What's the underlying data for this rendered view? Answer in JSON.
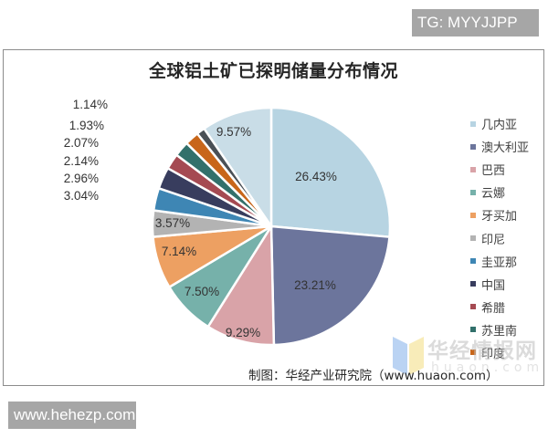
{
  "badges": {
    "top_right": "TG: MYYJJPP",
    "bottom_left": "www.hehezp.com"
  },
  "source_note": "制图：华经产业研究院（www.huaon.com）",
  "watermark": {
    "text": "华经情报网",
    "subtext": "huaon.com"
  },
  "chart_data": {
    "type": "pie",
    "title": "全球铝土矿已探明储量分布情况",
    "start_angle": "12 o'clock, clockwise",
    "legend_position": "right",
    "categories": [
      "几内亚",
      "澳大利亚",
      "巴西",
      "云娜",
      "牙买加",
      "印尼",
      "圭亚那",
      "中国",
      "希腊",
      "苏里南",
      "印度",
      "",
      ""
    ],
    "values": [
      26.43,
      23.21,
      9.29,
      7.5,
      7.14,
      3.57,
      3.04,
      2.96,
      2.14,
      2.07,
      1.93,
      1.14,
      9.57
    ],
    "labels": [
      "26.43%",
      "23.21%",
      "9.29%",
      "7.50%",
      "7.14%",
      "3.57%",
      "3.04%",
      "2.96%",
      "2.14%",
      "2.07%",
      "1.93%",
      "1.14%",
      "9.57%"
    ],
    "colors": [
      "#b7d4e2",
      "#6c759c",
      "#d9a3a8",
      "#76b1aa",
      "#eda062",
      "#b3b3b3",
      "#3e86b4",
      "#383d5e",
      "#a54a52",
      "#32706b",
      "#c8661a",
      "#4a5056",
      "#c9dde7"
    ],
    "legend": [
      {
        "label": "几内亚",
        "color": "#b7d4e2"
      },
      {
        "label": "澳大利亚",
        "color": "#6c759c"
      },
      {
        "label": "巴西",
        "color": "#d9a3a8"
      },
      {
        "label": "云娜",
        "color": "#76b1aa"
      },
      {
        "label": "牙买加",
        "color": "#eda062"
      },
      {
        "label": "印尼",
        "color": "#b3b3b3"
      },
      {
        "label": "圭亚那",
        "color": "#3e86b4"
      },
      {
        "label": "中国",
        "color": "#383d5e"
      },
      {
        "label": "希腊",
        "color": "#a54a52"
      },
      {
        "label": "苏里南",
        "color": "#32706b"
      },
      {
        "label": "印度",
        "color": "#c8661a"
      }
    ]
  }
}
